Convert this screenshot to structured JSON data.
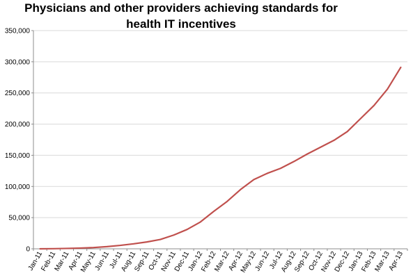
{
  "chart_data": {
    "type": "line",
    "title_lines": [
      "Physicians and other providers achieving standards for",
      "health IT incentives"
    ],
    "xlabel": "",
    "ylabel": "",
    "ylim": [
      0,
      350000
    ],
    "y_ticks": [
      0,
      50000,
      100000,
      150000,
      200000,
      250000,
      300000,
      350000
    ],
    "y_tick_labels": [
      "0",
      "50,000",
      "100,000",
      "150,000",
      "200,000",
      "250,000",
      "300,000",
      "350,000"
    ],
    "grid": "horizontal",
    "legend": "none",
    "line_color": "#c0504d",
    "categories": [
      "Jan-11",
      "Feb-11",
      "Mar-11",
      "Apr-11",
      "May-11",
      "Jun-11",
      "Jul-11",
      "Aug-11",
      "Sep-11",
      "Oct-11",
      "Nov-11",
      "Dec-11",
      "Jan-12",
      "Feb-12",
      "Mar-12",
      "Apr-12",
      "May-12",
      "Jun-12",
      "Jul-12",
      "Aug-12",
      "Sep-12",
      "Oct-12",
      "Nov-12",
      "Dec-12",
      "Jan-13",
      "Feb-13",
      "Mar-13",
      "Apr-13"
    ],
    "series": [
      {
        "values": [
          0,
          200,
          600,
          1200,
          2000,
          3500,
          5500,
          8000,
          11000,
          15000,
          22000,
          31000,
          43000,
          60000,
          76000,
          95000,
          111000,
          121000,
          129000,
          140000,
          152000,
          163000,
          174000,
          188000,
          209000,
          230000,
          256000,
          291000
        ]
      }
    ]
  }
}
